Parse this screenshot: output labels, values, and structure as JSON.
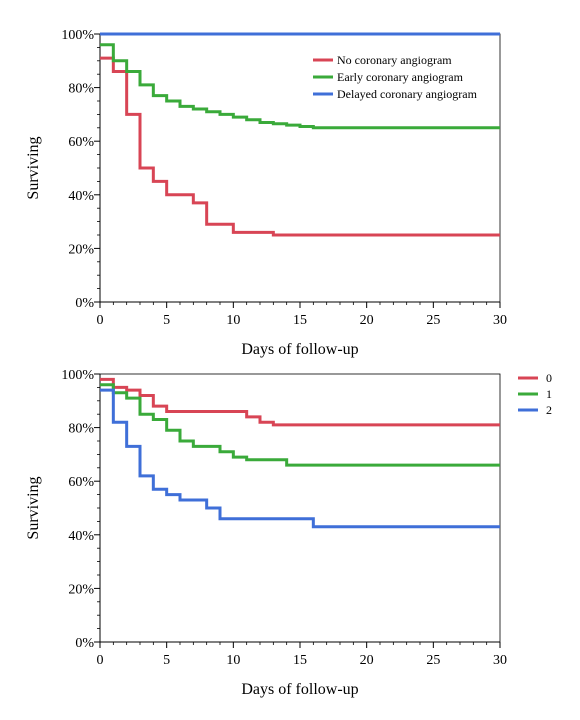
{
  "chart_data": [
    {
      "type": "line",
      "step": true,
      "xlabel": "Days of follow-up",
      "ylabel": "Surviving",
      "xlim": [
        0,
        30
      ],
      "ylim": [
        0,
        100
      ],
      "x_ticks": [
        "0",
        "5",
        "10",
        "15",
        "20",
        "25",
        "30"
      ],
      "y_ticks": [
        "0%",
        "20%",
        "40%",
        "60%",
        "80%",
        "100%"
      ],
      "legend_position": "top-right",
      "reference_line": {
        "y": 100,
        "color": "#8fa8d8"
      },
      "series": [
        {
          "name": "No coronary angiogram",
          "color": "#d84555",
          "x": [
            0,
            1,
            2,
            3,
            4,
            5,
            7,
            8,
            10,
            13,
            30
          ],
          "y": [
            91,
            86,
            70,
            50,
            45,
            40,
            37,
            29,
            26,
            25,
            25
          ]
        },
        {
          "name": "Early coronary angiogram",
          "color": "#3aaa3a",
          "x": [
            0,
            1,
            2,
            3,
            4,
            5,
            6,
            7,
            8,
            9,
            10,
            11,
            12,
            13,
            14,
            15,
            16,
            30
          ],
          "y": [
            96,
            90,
            86,
            81,
            77,
            75,
            73,
            72,
            71,
            70,
            69,
            68,
            67,
            66.5,
            66,
            65.5,
            65,
            65
          ]
        },
        {
          "name": "Delayed coronary angiogram",
          "color": "#3f6fd8",
          "x": [
            0,
            30
          ],
          "y": [
            100,
            100
          ]
        }
      ]
    },
    {
      "type": "line",
      "step": true,
      "xlabel": "Days of follow-up",
      "ylabel": "Surviving",
      "xlim": [
        0,
        30
      ],
      "ylim": [
        0,
        100
      ],
      "x_ticks": [
        "0",
        "5",
        "10",
        "15",
        "20",
        "25",
        "30"
      ],
      "y_ticks": [
        "0%",
        "20%",
        "40%",
        "60%",
        "80%",
        "100%"
      ],
      "legend_position": "outside-right",
      "series": [
        {
          "name": "0",
          "color": "#d84555",
          "x": [
            0,
            1,
            2,
            3,
            4,
            5,
            11,
            12,
            13,
            30
          ],
          "y": [
            98,
            95,
            94,
            92,
            88,
            86,
            84,
            82,
            81,
            81
          ]
        },
        {
          "name": "1",
          "color": "#3aaa3a",
          "x": [
            0,
            1,
            2,
            3,
            4,
            5,
            6,
            7,
            9,
            10,
            11,
            14,
            30
          ],
          "y": [
            96,
            93,
            91,
            85,
            83,
            79,
            75,
            73,
            71,
            69,
            68,
            66,
            66
          ]
        },
        {
          "name": "2",
          "color": "#3f6fd8",
          "x": [
            0,
            1,
            2,
            3,
            4,
            5,
            6,
            8,
            9,
            16,
            30
          ],
          "y": [
            94,
            82,
            73,
            62,
            57,
            55,
            53,
            50,
            46,
            43,
            43
          ]
        }
      ]
    }
  ]
}
